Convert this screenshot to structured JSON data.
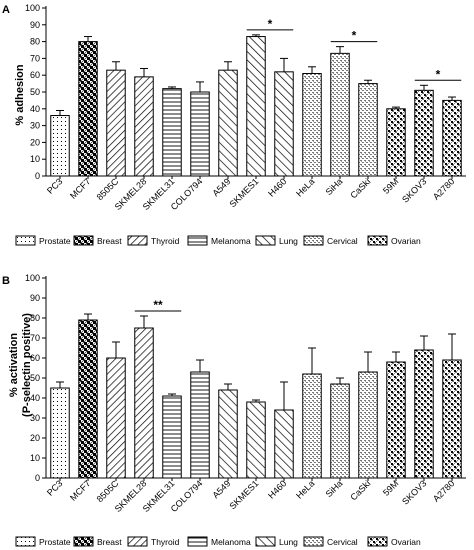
{
  "chart_data": [
    {
      "type": "bar",
      "panel_label": "A",
      "ylabel": "% adhesion",
      "ylim": [
        0,
        100
      ],
      "yticks": [
        0,
        10,
        20,
        30,
        40,
        50,
        60,
        70,
        80,
        90,
        100
      ],
      "categories": [
        "PC3",
        "MCF7",
        "8505C",
        "SKMEL28",
        "SKMEL31",
        "COLO794",
        "A549",
        "SKMES1",
        "H460",
        "HeLa",
        "SiHa",
        "CaSki",
        "59M",
        "SKOV3",
        "A2780"
      ],
      "groups": [
        "prostate",
        "breast",
        "thyroid",
        "thyroid",
        "melanoma",
        "melanoma",
        "lung",
        "lung",
        "lung",
        "cervical",
        "cervical",
        "cervical",
        "ovarian",
        "ovarian",
        "ovarian"
      ],
      "values": [
        36,
        80,
        63,
        59,
        52,
        50,
        63,
        83,
        62,
        61,
        73,
        55,
        40,
        51,
        45
      ],
      "errors": [
        3,
        3,
        5,
        5,
        1,
        6,
        5,
        1,
        8,
        4,
        4,
        2,
        1,
        3,
        2
      ],
      "significance": [
        {
          "from": 7,
          "to": 8,
          "label": "*"
        },
        {
          "from": 10,
          "to": 11,
          "label": "*"
        },
        {
          "from": 13,
          "to": 14,
          "label": "*"
        }
      ],
      "grid": false,
      "legend_position": "bottom"
    },
    {
      "type": "bar",
      "panel_label": "B",
      "ylabel_line1": "% activation",
      "ylabel_line2": "(P-selectin positive)",
      "ylim": [
        0,
        100
      ],
      "yticks": [
        0,
        10,
        20,
        30,
        40,
        50,
        60,
        70,
        80,
        90,
        100
      ],
      "categories": [
        "PC3",
        "MCF7",
        "8505C",
        "SKMEL28",
        "SKMEL31",
        "COLO794",
        "A549",
        "SKMES1",
        "H460",
        "HeLa",
        "SiHa",
        "CaSki",
        "59M",
        "SKOV3",
        "A2780"
      ],
      "groups": [
        "prostate",
        "breast",
        "thyroid",
        "thyroid",
        "melanoma",
        "melanoma",
        "lung",
        "lung",
        "lung",
        "cervical",
        "cervical",
        "cervical",
        "ovarian",
        "ovarian",
        "ovarian"
      ],
      "values": [
        45,
        79,
        60,
        75,
        41,
        53,
        44,
        38,
        34,
        52,
        47,
        53,
        58,
        64,
        59
      ],
      "errors": [
        3,
        3,
        8,
        6,
        1,
        6,
        3,
        1,
        14,
        13,
        3,
        10,
        5,
        7,
        13
      ],
      "significance": [
        {
          "from": 3,
          "to": 4,
          "label": "**"
        }
      ],
      "grid": false,
      "legend_position": "bottom"
    }
  ],
  "legend": [
    {
      "key": "prostate",
      "label": "Prostate"
    },
    {
      "key": "breast",
      "label": "Breast"
    },
    {
      "key": "thyroid",
      "label": "Thyroid"
    },
    {
      "key": "melanoma",
      "label": "Melanoma"
    },
    {
      "key": "lung",
      "label": "Lung"
    },
    {
      "key": "cervical",
      "label": "Cervical"
    },
    {
      "key": "ovarian",
      "label": "Ovarian"
    }
  ]
}
